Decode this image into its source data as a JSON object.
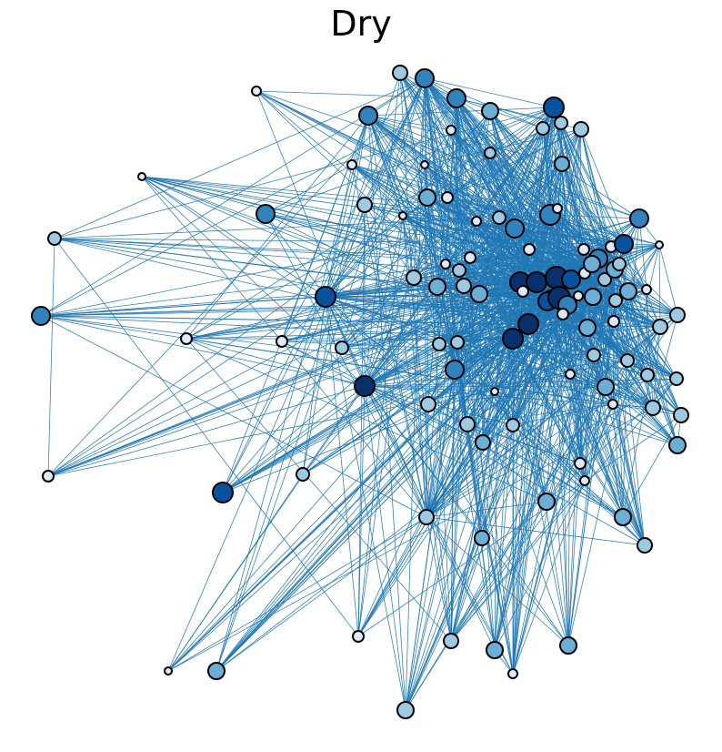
{
  "title": "Dry",
  "colors": {
    "edge": "#1f77b4",
    "node_outline": "#000000",
    "scale": [
      "#deebf7",
      "#9ecae1",
      "#6baed6",
      "#3182bd",
      "#08519c",
      "#08306b"
    ]
  }
}
